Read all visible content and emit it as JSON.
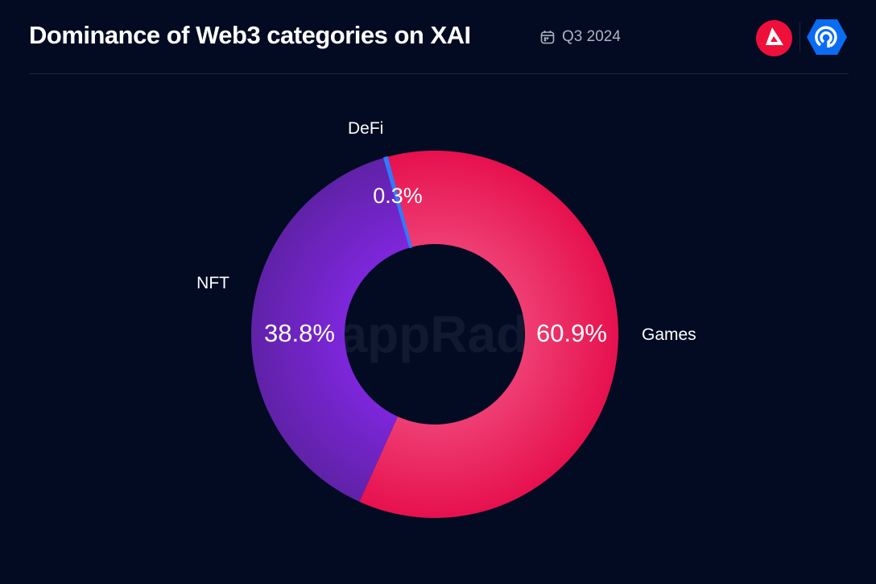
{
  "header": {
    "title": "Dominance of Web3 categories on XAI",
    "period": "Q3 2024"
  },
  "icons": {
    "calendar": "calendar-icon",
    "logo_left": "arbitrum-red-triangle-logo",
    "logo_right": "dappradar-logo"
  },
  "watermark": "DappRadar",
  "chart_data": {
    "type": "pie",
    "donut": true,
    "categories": [
      "Games",
      "NFT",
      "DeFi"
    ],
    "values": [
      60.9,
      38.8,
      0.3
    ],
    "labels": [
      "60.9%",
      "38.8%",
      "0.3%"
    ],
    "colors": [
      "#e8134f",
      "#7a22d4",
      "#2f7bff"
    ],
    "title": "Dominance of Web3 categories on XAI"
  }
}
